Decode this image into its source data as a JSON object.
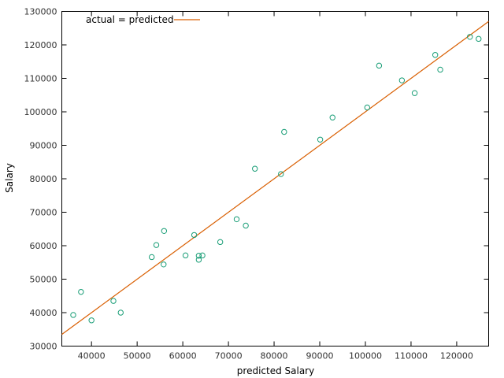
{
  "chart_data": {
    "type": "scatter",
    "title": "",
    "xlabel": "predicted Salary",
    "ylabel": "Salary",
    "xlim": [
      33500,
      127000
    ],
    "ylim": [
      30000,
      130000
    ],
    "x_ticks": [
      40000,
      50000,
      60000,
      70000,
      80000,
      90000,
      100000,
      110000,
      120000
    ],
    "y_ticks": [
      30000,
      40000,
      50000,
      60000,
      70000,
      80000,
      90000,
      100000,
      110000,
      120000,
      130000
    ],
    "x_tick_labels": [
      "40000",
      "50000",
      "60000",
      "70000",
      "80000",
      "90000",
      "100000",
      "110000",
      "120000"
    ],
    "y_tick_labels": [
      "30000",
      "40000",
      "50000",
      "60000",
      "70000",
      "80000",
      "90000",
      "100000",
      "110000",
      "120000",
      "130000"
    ],
    "grid": false,
    "legend_position": "top-left",
    "series": [
      {
        "name": "",
        "kind": "points",
        "color": "#1a9e77",
        "x": [
          36000,
          37700,
          40000,
          44800,
          46400,
          53200,
          54200,
          55900,
          55800,
          60600,
          62500,
          63500,
          63500,
          64300,
          68200,
          71800,
          73800,
          75800,
          81500,
          82200,
          90100,
          92800,
          100400,
          103000,
          108000,
          110800,
          115300,
          116400,
          122900,
          124800
        ],
        "y": [
          39300,
          46200,
          37700,
          43500,
          40000,
          56600,
          60200,
          64400,
          54400,
          57100,
          63200,
          57000,
          55800,
          57100,
          61100,
          67900,
          66000,
          83000,
          81400,
          94000,
          91700,
          98300,
          101300,
          113800,
          109400,
          105600,
          117000,
          112600,
          122400,
          121800
        ]
      },
      {
        "name": "actual = predicted",
        "kind": "line",
        "color": "#d95f02",
        "x": [
          33500,
          127000
        ],
        "y": [
          33500,
          127000
        ]
      }
    ]
  }
}
